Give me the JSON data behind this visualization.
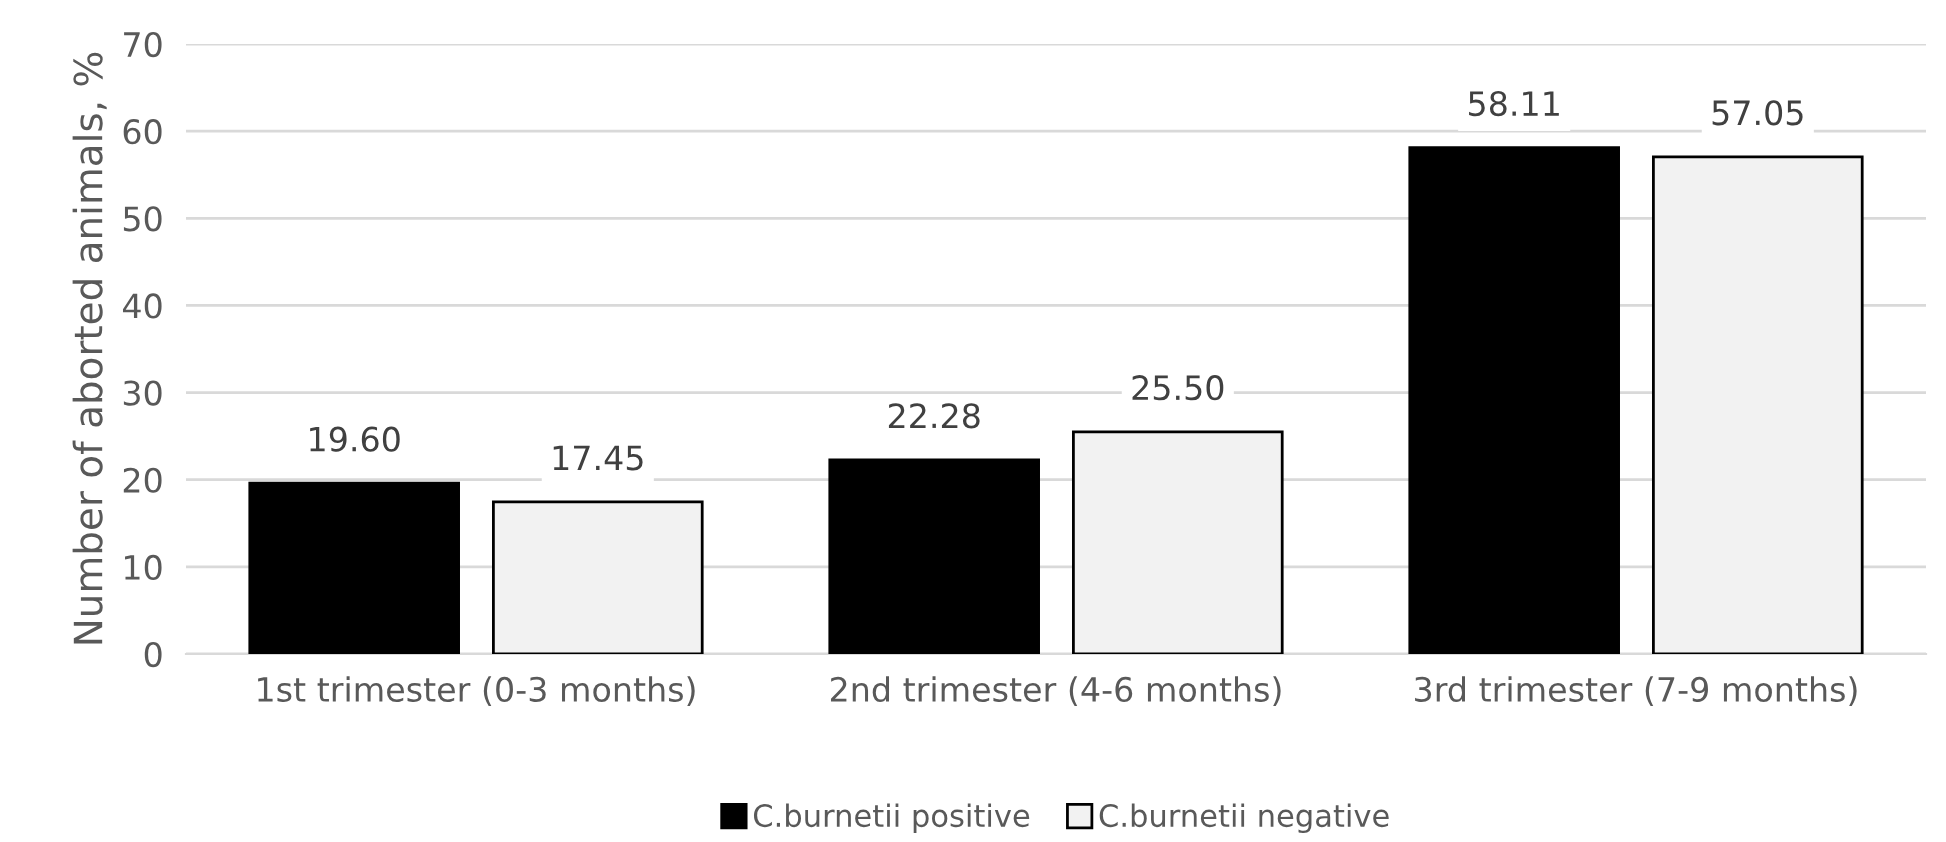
{
  "chart_data": {
    "type": "bar",
    "ylabel": "Number of aborted animals, %",
    "categories": [
      "1st trimester (0-3 months)",
      "2nd trimester (4-6 months)",
      "3rd trimester (7-9 months)"
    ],
    "series": [
      {
        "name": "C.burnetii positive",
        "color": "#000000",
        "values": [
          19.6,
          22.28,
          58.11
        ],
        "value_labels": [
          "19.60",
          "22.28",
          "58.11"
        ]
      },
      {
        "name": "C.burnetii negative",
        "color": "#f2f2f2",
        "values": [
          17.45,
          25.5,
          57.05
        ],
        "value_labels": [
          "17.45",
          "25.50",
          "57.05"
        ]
      }
    ],
    "ylim": [
      0,
      70
    ],
    "yticks": [
      0,
      10,
      20,
      30,
      40,
      50,
      60,
      70
    ],
    "grid": "y",
    "legend": "bottom"
  }
}
